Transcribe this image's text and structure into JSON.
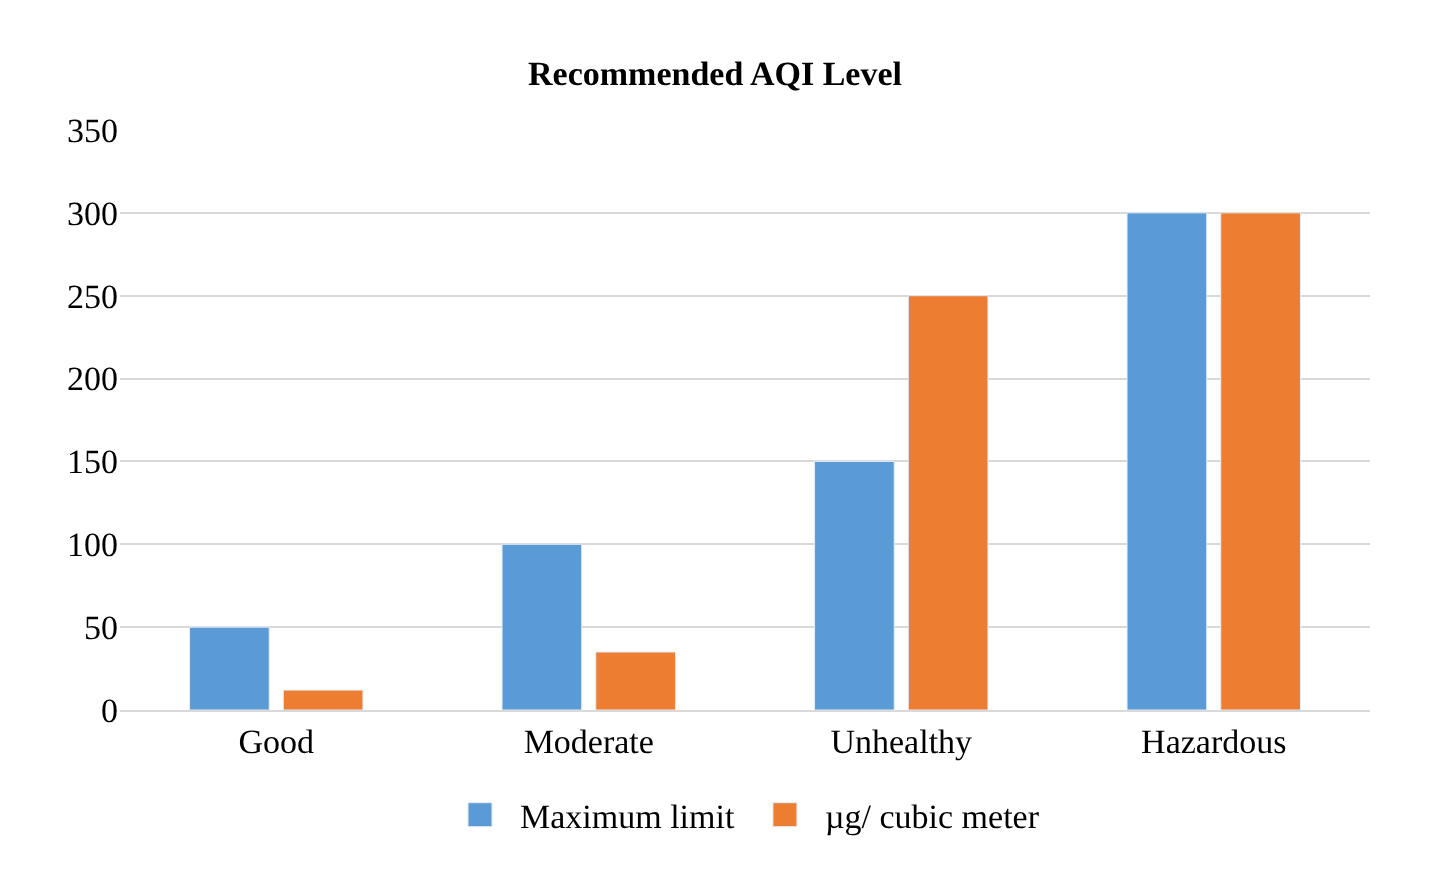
{
  "chart_data": {
    "type": "bar",
    "title": "Recommended AQI Level",
    "categories": [
      "Good",
      "Moderate",
      "Unhealthy",
      "Hazardous"
    ],
    "series": [
      {
        "name": "Maximum limit",
        "color": "#5b9bd5",
        "values": [
          50,
          100,
          150,
          300
        ]
      },
      {
        "name": "µg/ cubic meter",
        "color": "#ed7d31",
        "values": [
          12,
          35,
          250,
          300
        ]
      }
    ],
    "ylim": [
      0,
      350
    ],
    "yticks": [
      0,
      50,
      100,
      150,
      200,
      250,
      300,
      350
    ],
    "grid": "y",
    "legend": "bottom"
  }
}
